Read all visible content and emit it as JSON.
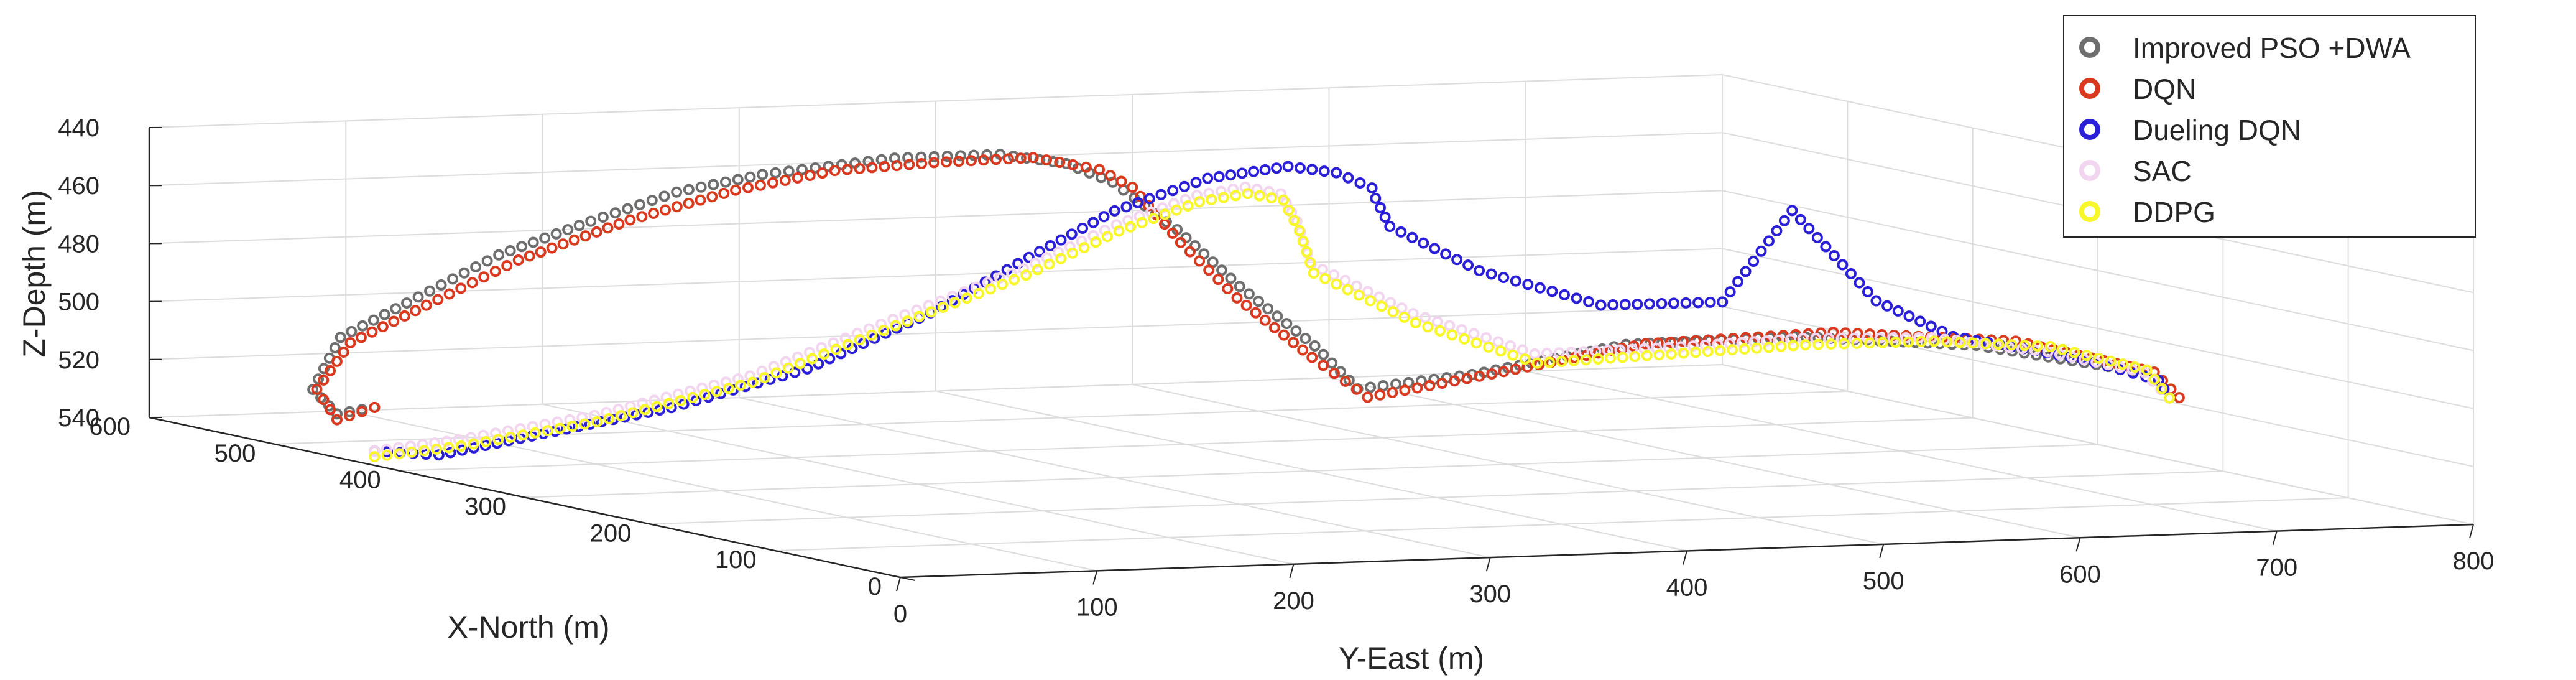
{
  "chart_data": {
    "type": "scatter",
    "projection": "3d",
    "title": "",
    "xlabel": "X-North (m)",
    "ylabel": "Y-East (m)",
    "zlabel": "Z-Depth (m)",
    "xlim": [
      0,
      600
    ],
    "ylim": [
      0,
      800
    ],
    "zlim": [
      440,
      540
    ],
    "z_direction": "reverse",
    "grid": true,
    "legend_position": "top-right",
    "x_ticks": [
      "0",
      "100",
      "200",
      "300",
      "400",
      "500",
      "600"
    ],
    "y_ticks": [
      "0",
      "100",
      "200",
      "300",
      "400",
      "500",
      "600",
      "700",
      "800"
    ],
    "z_ticks": [
      "440",
      "460",
      "480",
      "500",
      "520",
      "540"
    ],
    "series": [
      {
        "name": "Improved PSO +DWA",
        "color": "#6e6e6e",
        "points": [
          [
            420,
            0,
            520
          ],
          [
            450,
            0,
            525
          ],
          [
            485,
            10,
            520
          ],
          [
            510,
            40,
            505
          ],
          [
            520,
            80,
            495
          ],
          [
            525,
            130,
            480
          ],
          [
            530,
            180,
            470
          ],
          [
            540,
            230,
            462
          ],
          [
            550,
            280,
            458
          ],
          [
            560,
            320,
            457
          ],
          [
            570,
            360,
            456
          ],
          [
            580,
            420,
            457
          ],
          [
            590,
            460,
            462
          ],
          [
            600,
            490,
            470
          ],
          [
            580,
            510,
            485
          ],
          [
            530,
            510,
            500
          ],
          [
            470,
            510,
            515
          ],
          [
            420,
            500,
            525
          ],
          [
            360,
            520,
            515
          ],
          [
            300,
            560,
            500
          ],
          [
            260,
            620,
            495
          ],
          [
            240,
            700,
            498
          ],
          [
            200,
            760,
            505
          ],
          [
            180,
            760,
            512
          ]
        ]
      },
      {
        "name": "DQN",
        "color": "#d93a1f",
        "points": [
          [
            420,
            0,
            520
          ],
          [
            450,
            0,
            527
          ],
          [
            485,
            12,
            520
          ],
          [
            510,
            45,
            507
          ],
          [
            520,
            90,
            496
          ],
          [
            525,
            140,
            482
          ],
          [
            530,
            200,
            470
          ],
          [
            540,
            260,
            462
          ],
          [
            555,
            320,
            458
          ],
          [
            570,
            380,
            458
          ],
          [
            585,
            440,
            459
          ],
          [
            595,
            480,
            465
          ],
          [
            600,
            500,
            472
          ],
          [
            585,
            515,
            490
          ],
          [
            540,
            515,
            505
          ],
          [
            480,
            515,
            520
          ],
          [
            420,
            505,
            528
          ],
          [
            360,
            530,
            515
          ],
          [
            300,
            570,
            500
          ],
          [
            260,
            640,
            494
          ],
          [
            240,
            720,
            497
          ],
          [
            200,
            765,
            505
          ],
          [
            180,
            765,
            512
          ]
        ]
      },
      {
        "name": "Dueling DQN",
        "color": "#2a1fd6",
        "points": [
          [
            420,
            0,
            535
          ],
          [
            400,
            20,
            535
          ],
          [
            370,
            60,
            525
          ],
          [
            340,
            100,
            515
          ],
          [
            310,
            150,
            500
          ],
          [
            290,
            200,
            480
          ],
          [
            290,
            250,
            462
          ],
          [
            300,
            300,
            448
          ],
          [
            320,
            360,
            440
          ],
          [
            350,
            420,
            440
          ],
          [
            390,
            470,
            447
          ],
          [
            440,
            520,
            458
          ],
          [
            500,
            560,
            468
          ],
          [
            520,
            580,
            480
          ],
          [
            480,
            600,
            492
          ],
          [
            430,
            630,
            500
          ],
          [
            380,
            660,
            495
          ],
          [
            340,
            670,
            460
          ],
          [
            320,
            700,
            490
          ],
          [
            290,
            720,
            500
          ],
          [
            250,
            760,
            505
          ],
          [
            220,
            780,
            510
          ],
          [
            180,
            760,
            512
          ]
        ]
      },
      {
        "name": "SAC",
        "color": "#f2d6f0",
        "points": [
          [
            420,
            0,
            535
          ],
          [
            400,
            30,
            530
          ],
          [
            370,
            80,
            520
          ],
          [
            340,
            140,
            505
          ],
          [
            320,
            200,
            485
          ],
          [
            310,
            260,
            468
          ],
          [
            330,
            320,
            456
          ],
          [
            360,
            380,
            450
          ],
          [
            400,
            430,
            452
          ],
          [
            450,
            480,
            460
          ],
          [
            500,
            520,
            475
          ],
          [
            520,
            540,
            492
          ],
          [
            470,
            560,
            505
          ],
          [
            420,
            590,
            515
          ],
          [
            360,
            620,
            508
          ],
          [
            300,
            650,
            500
          ],
          [
            260,
            690,
            497
          ],
          [
            230,
            730,
            500
          ],
          [
            200,
            760,
            505
          ],
          [
            180,
            760,
            512
          ]
        ]
      },
      {
        "name": "DDPG",
        "color": "#f7f72a",
        "points": [
          [
            420,
            0,
            537
          ],
          [
            398,
            30,
            532
          ],
          [
            368,
            80,
            522
          ],
          [
            338,
            140,
            507
          ],
          [
            318,
            200,
            487
          ],
          [
            308,
            260,
            470
          ],
          [
            328,
            320,
            458
          ],
          [
            358,
            380,
            452
          ],
          [
            398,
            430,
            454
          ],
          [
            448,
            480,
            462
          ],
          [
            498,
            520,
            478
          ],
          [
            518,
            540,
            495
          ],
          [
            468,
            560,
            508
          ],
          [
            418,
            590,
            518
          ],
          [
            358,
            620,
            510
          ],
          [
            298,
            650,
            502
          ],
          [
            258,
            690,
            498
          ],
          [
            228,
            730,
            498
          ],
          [
            198,
            760,
            504
          ],
          [
            180,
            760,
            512
          ]
        ]
      }
    ]
  }
}
